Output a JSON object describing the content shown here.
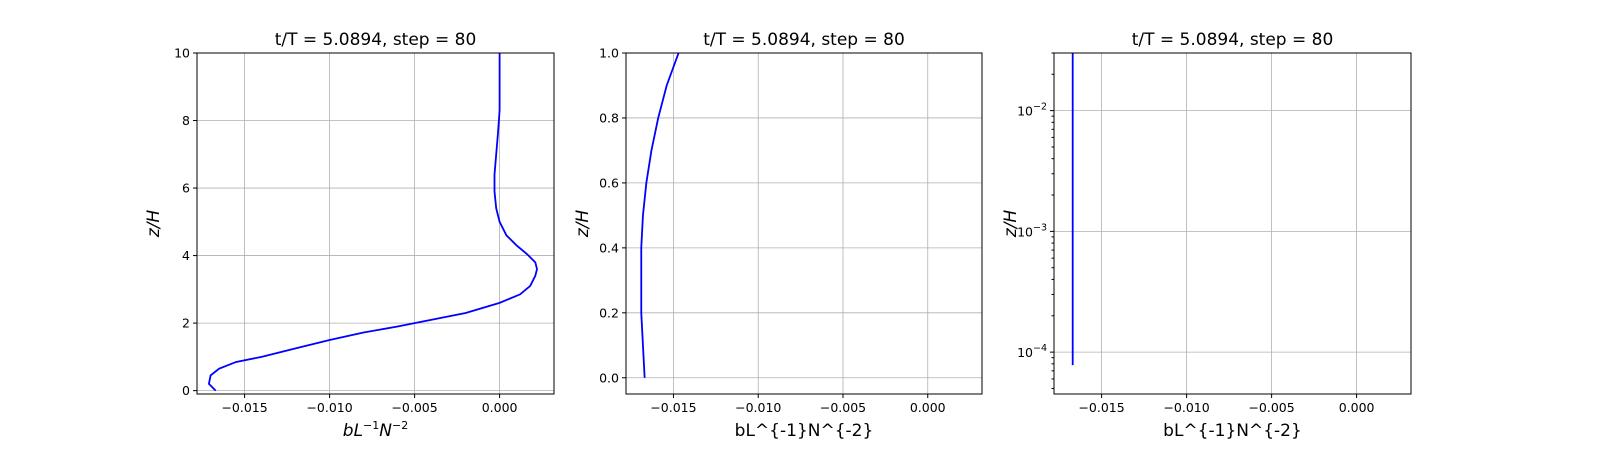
{
  "chart_data": [
    {
      "type": "line",
      "title": "t/T = 5.0894, step = 80",
      "ylabel": "z/H",
      "xlabel_base": "bL",
      "xlabel_sup1": "−1",
      "xlabel_mid": "N",
      "xlabel_sup2": "−2",
      "xlim": [
        -0.0178,
        0.0032
      ],
      "ylim": [
        -0.1,
        10
      ],
      "yscale": "linear",
      "grid": true,
      "xticks": [
        -0.015,
        -0.01,
        -0.005,
        0.0
      ],
      "xtick_labels": [
        "−0.015",
        "−0.010",
        "−0.005",
        "0.000"
      ],
      "yticks": [
        0,
        2,
        4,
        6,
        8,
        10
      ],
      "ytick_labels": [
        "0",
        "2",
        "4",
        "6",
        "8",
        "10"
      ],
      "series": [
        {
          "color": "#0000ff",
          "points": [
            [
              -0.0167,
              0.0
            ],
            [
              -0.0171,
              0.2
            ],
            [
              -0.017,
              0.45
            ],
            [
              -0.0165,
              0.65
            ],
            [
              -0.0155,
              0.85
            ],
            [
              -0.014,
              1.0
            ],
            [
              -0.012,
              1.25
            ],
            [
              -0.01,
              1.5
            ],
            [
              -0.008,
              1.72
            ],
            [
              -0.006,
              1.9
            ],
            [
              -0.004,
              2.1
            ],
            [
              -0.002,
              2.3
            ],
            [
              0.0,
              2.6
            ],
            [
              0.0012,
              2.85
            ],
            [
              0.0018,
              3.1
            ],
            [
              0.0021,
              3.4
            ],
            [
              0.0022,
              3.6
            ],
            [
              0.0021,
              3.8
            ],
            [
              0.0016,
              4.05
            ],
            [
              0.001,
              4.3
            ],
            [
              0.0004,
              4.6
            ],
            [
              0.0,
              5.0
            ],
            [
              -0.0002,
              5.4
            ],
            [
              -0.0003,
              5.9
            ],
            [
              -0.0003,
              6.4
            ],
            [
              -0.0002,
              7.0
            ],
            [
              -0.0001,
              7.6
            ],
            [
              0.0,
              8.3
            ],
            [
              0.0,
              9.0
            ],
            [
              0.0,
              10.0
            ]
          ]
        }
      ]
    },
    {
      "type": "line",
      "title": "t/T = 5.0894, step = 80",
      "ylabel": "z/H",
      "xlabel": "bL^{-1}N^{-2}",
      "xlim": [
        -0.0178,
        0.0032
      ],
      "ylim": [
        -0.05,
        1.0
      ],
      "yscale": "linear",
      "grid": true,
      "xticks": [
        -0.015,
        -0.01,
        -0.005,
        0.0
      ],
      "xtick_labels": [
        "−0.015",
        "−0.010",
        "−0.005",
        "0.000"
      ],
      "yticks": [
        0.0,
        0.2,
        0.4,
        0.6,
        0.8,
        1.0
      ],
      "ytick_labels": [
        "0.0",
        "0.2",
        "0.4",
        "0.6",
        "0.8",
        "1.0"
      ],
      "series": [
        {
          "color": "#0000ff",
          "points": [
            [
              -0.0167,
              0.0
            ],
            [
              -0.0168,
              0.1
            ],
            [
              -0.0169,
              0.2
            ],
            [
              -0.0169,
              0.3
            ],
            [
              -0.0169,
              0.4
            ],
            [
              -0.0168,
              0.5
            ],
            [
              -0.0166,
              0.6
            ],
            [
              -0.0163,
              0.7
            ],
            [
              -0.0159,
              0.8
            ],
            [
              -0.0154,
              0.9
            ],
            [
              -0.0147,
              1.0
            ]
          ]
        }
      ]
    },
    {
      "type": "line",
      "title": "t/T = 5.0894, step = 80",
      "ylabel": "z/H",
      "xlabel": "bL^{-1}N^{-2}",
      "xlim": [
        -0.0178,
        0.0032
      ],
      "ylim": [
        4.5e-05,
        0.03
      ],
      "yscale": "log",
      "grid": true,
      "xticks": [
        -0.015,
        -0.01,
        -0.005,
        0.0
      ],
      "xtick_labels": [
        "−0.015",
        "−0.010",
        "−0.005",
        "0.000"
      ],
      "yticks_major": [
        0.0001,
        0.001,
        0.01
      ],
      "ytick_base": "10",
      "ytick_exponents": [
        "−4",
        "−3",
        "−2"
      ],
      "series": [
        {
          "color": "#0000ff",
          "points": [
            [
              -0.0167,
              7.8e-05
            ],
            [
              -0.0167,
              0.001
            ],
            [
              -0.0167,
              0.01
            ],
            [
              -0.0167,
              0.03
            ]
          ]
        }
      ]
    }
  ]
}
